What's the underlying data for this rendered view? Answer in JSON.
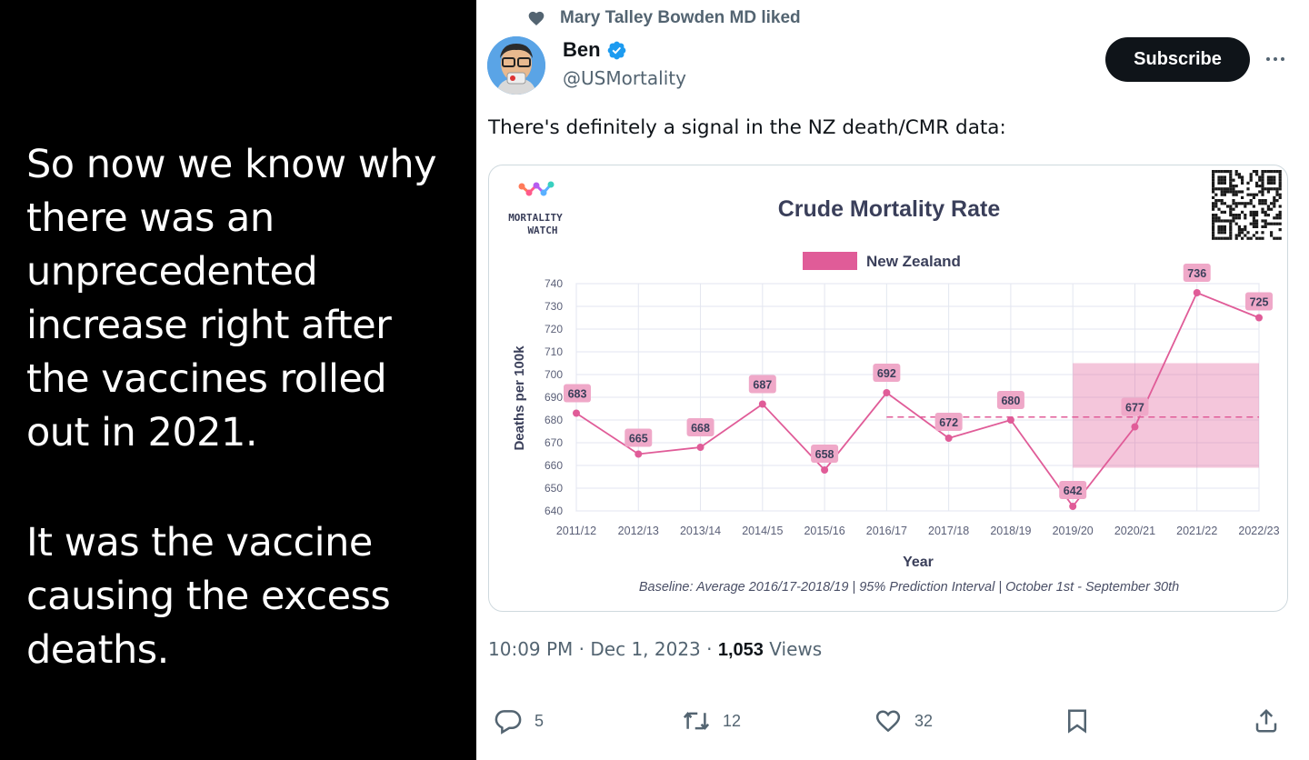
{
  "caption": {
    "paragraph_1": "So now we know why\nthere was an\nunprecedented\nincrease right after\nthe vaccines rolled\nout in 2021.",
    "paragraph_2": "It was the vaccine\ncausing the excess\ndeaths."
  },
  "tweet": {
    "social_context": "Mary Talley Bowden MD liked",
    "author_name": "Ben",
    "author_handle": "@USMortality",
    "subscribe_label": "Subscribe",
    "more_label": "···",
    "text": "There's definitely a signal in the NZ death/CMR data:",
    "time": "10:09 PM · Dec 1, 2023 · ",
    "views_count": "1,053",
    "views_label": " Views",
    "replies": "5",
    "reposts": "12",
    "likes": "32",
    "icons": [
      "heart-icon",
      "verified-badge-icon",
      "more-icon",
      "reply-icon",
      "repost-icon",
      "like-icon",
      "bookmark-icon",
      "share-icon"
    ],
    "colors": {
      "verified": "#1d9bf0",
      "text": "#0f1419",
      "secondary": "#536471"
    }
  },
  "chart_logo": {
    "line_1": "MORTALITY",
    "line_2": "WATCH"
  },
  "chart_data": {
    "type": "line",
    "title": "Crude Mortality Rate",
    "xlabel": "Year",
    "ylabel": "Deaths per 100k",
    "footnote": "Baseline: Average 2016/17-2018/19 | 95% Prediction Interval | October 1st - September 30th",
    "legend": {
      "entries": [
        "New Zealand"
      ],
      "placement": "top-center"
    },
    "categories": [
      "2011/12",
      "2012/13",
      "2013/14",
      "2014/15",
      "2015/16",
      "2016/17",
      "2017/18",
      "2018/19",
      "2019/20",
      "2020/21",
      "2021/22",
      "2022/23"
    ],
    "series": [
      {
        "name": "New Zealand",
        "values": [
          683,
          665,
          668,
          687,
          658,
          692,
          672,
          680,
          642,
          677,
          736,
          725
        ],
        "color": "#e05c98"
      }
    ],
    "baseline": {
      "value": 681.3,
      "from": "2016/17",
      "to": "2022/23"
    },
    "prediction_interval": {
      "from": "2019/20",
      "to": "2022/23",
      "lower": 659,
      "upper": 705
    },
    "ylim": [
      640,
      740
    ],
    "yticks": [
      640,
      650,
      660,
      670,
      680,
      690,
      700,
      710,
      720,
      730,
      740
    ],
    "grid": true
  }
}
